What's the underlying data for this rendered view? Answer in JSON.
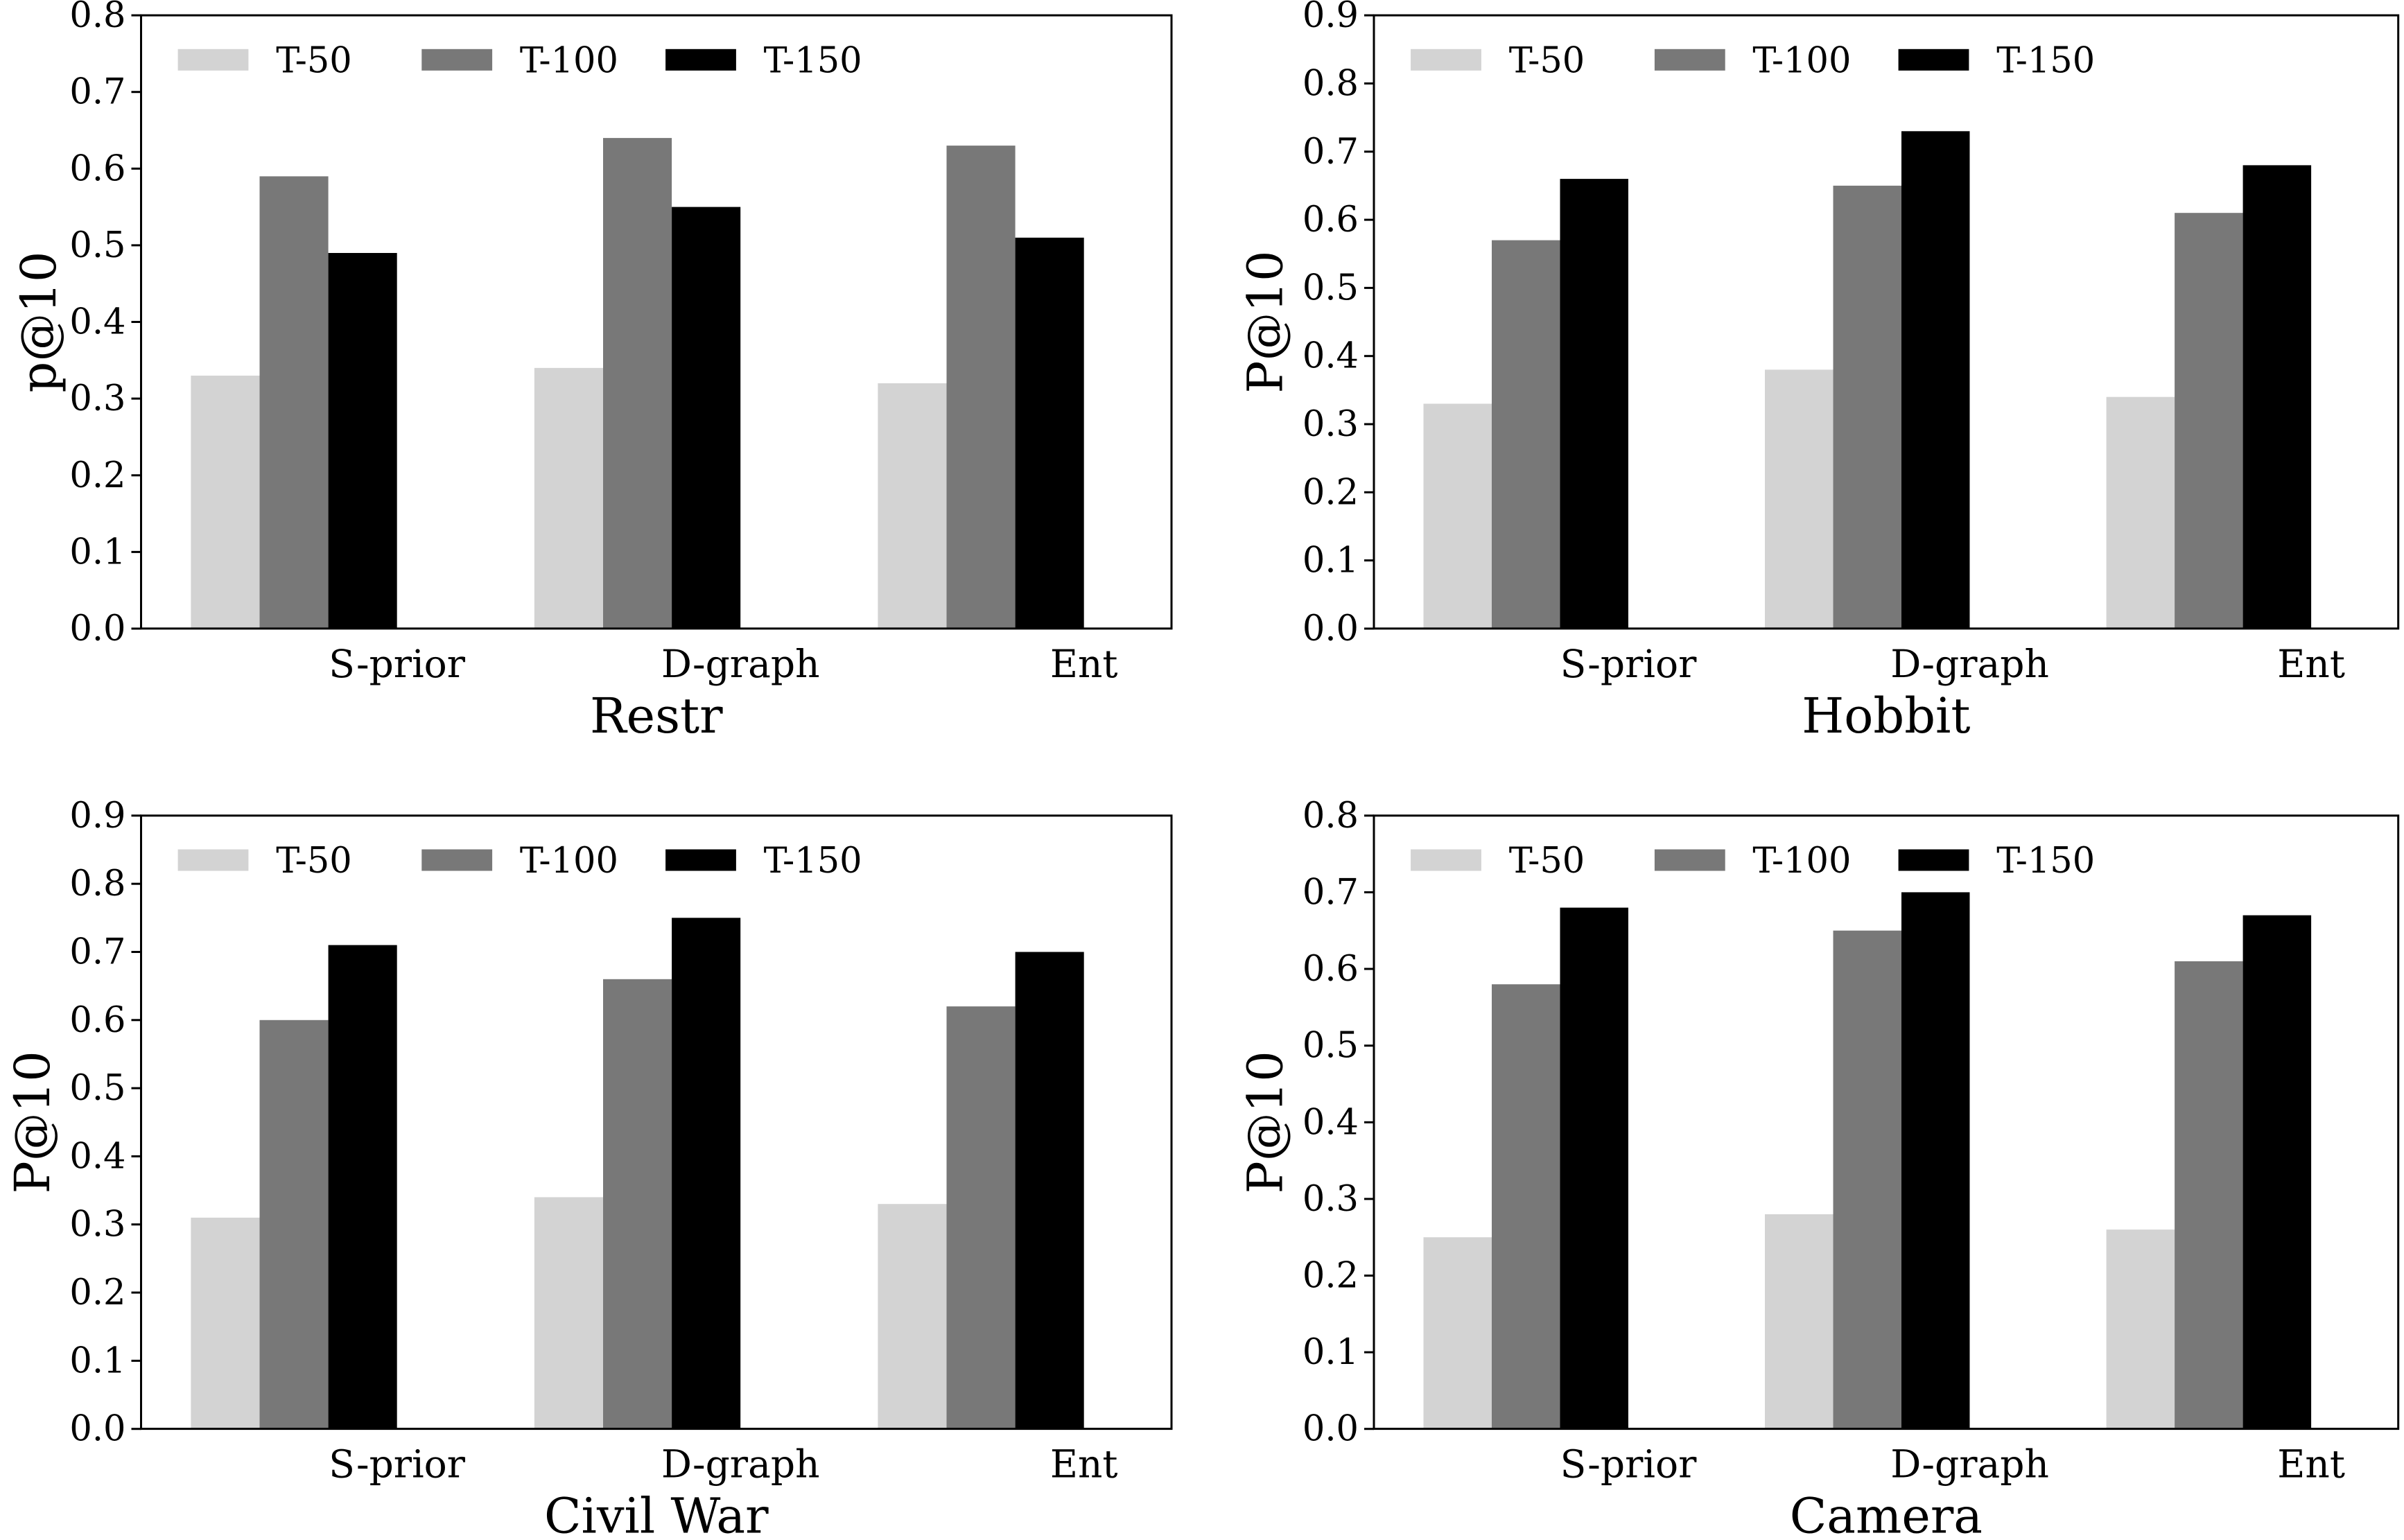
{
  "chart_data": [
    {
      "type": "bar",
      "title": "",
      "xlabel": "Restr",
      "ylabel": "p@10",
      "ylim": [
        0,
        0.8
      ],
      "yticks": [
        "0.0",
        "0.1",
        "0.2",
        "0.3",
        "0.4",
        "0.5",
        "0.6",
        "0.7",
        "0.8"
      ],
      "categories": [
        "S-prior",
        "D-graph",
        "Ent"
      ],
      "series": [
        {
          "name": "T-50",
          "color": "#d3d3d3",
          "values": [
            0.33,
            0.34,
            0.32
          ]
        },
        {
          "name": "T-100",
          "color": "#787878",
          "values": [
            0.59,
            0.64,
            0.63
          ]
        },
        {
          "name": "T-150",
          "color": "#000000",
          "values": [
            0.49,
            0.55,
            0.51
          ]
        }
      ],
      "legend": "top-left",
      "grid": false
    },
    {
      "type": "bar",
      "title": "",
      "xlabel": "Hobbit",
      "ylabel": "P@10",
      "ylim": [
        0,
        0.9
      ],
      "yticks": [
        "0.0",
        "0.1",
        "0.2",
        "0.3",
        "0.4",
        "0.5",
        "0.6",
        "0.7",
        "0.8",
        "0.9"
      ],
      "categories": [
        "S-prior",
        "D-graph",
        "Ent"
      ],
      "series": [
        {
          "name": "T-50",
          "color": "#d3d3d3",
          "values": [
            0.33,
            0.38,
            0.34
          ]
        },
        {
          "name": "T-100",
          "color": "#787878",
          "values": [
            0.57,
            0.65,
            0.61
          ]
        },
        {
          "name": "T-150",
          "color": "#000000",
          "values": [
            0.66,
            0.73,
            0.68
          ]
        }
      ],
      "legend": "top-left",
      "grid": false
    },
    {
      "type": "bar",
      "title": "",
      "xlabel": "Civil War",
      "ylabel": "P@10",
      "ylim": [
        0,
        0.9
      ],
      "yticks": [
        "0.0",
        "0.1",
        "0.2",
        "0.3",
        "0.4",
        "0.5",
        "0.6",
        "0.7",
        "0.8",
        "0.9"
      ],
      "categories": [
        "S-prior",
        "D-graph",
        "Ent"
      ],
      "series": [
        {
          "name": "T-50",
          "color": "#d3d3d3",
          "values": [
            0.31,
            0.34,
            0.33
          ]
        },
        {
          "name": "T-100",
          "color": "#787878",
          "values": [
            0.6,
            0.66,
            0.62
          ]
        },
        {
          "name": "T-150",
          "color": "#000000",
          "values": [
            0.71,
            0.75,
            0.7
          ]
        }
      ],
      "legend": "top-left",
      "grid": false
    },
    {
      "type": "bar",
      "title": "",
      "xlabel": "Camera",
      "ylabel": "P@10",
      "ylim": [
        0,
        0.8
      ],
      "yticks": [
        "0.0",
        "0.1",
        "0.2",
        "0.3",
        "0.4",
        "0.5",
        "0.6",
        "0.7",
        "0.8"
      ],
      "categories": [
        "S-prior",
        "D-graph",
        "Ent"
      ],
      "series": [
        {
          "name": "T-50",
          "color": "#d3d3d3",
          "values": [
            0.25,
            0.28,
            0.26
          ]
        },
        {
          "name": "T-100",
          "color": "#787878",
          "values": [
            0.58,
            0.65,
            0.61
          ]
        },
        {
          "name": "T-150",
          "color": "#000000",
          "values": [
            0.68,
            0.7,
            0.67
          ]
        }
      ],
      "legend": "top-left",
      "grid": false
    }
  ]
}
